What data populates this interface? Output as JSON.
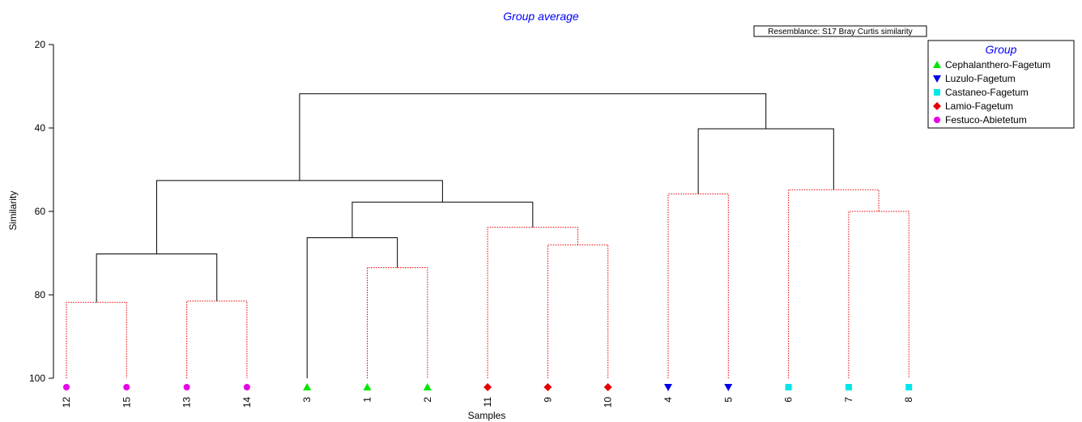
{
  "chart_data": {
    "type": "dendrogram",
    "title": "Group average",
    "annotation": "Resemblance: S17 Bray Curtis similarity",
    "xlabel": "Samples",
    "ylabel": "Similarity",
    "ylim": [
      20,
      100
    ],
    "yticks": [
      "20",
      "40",
      "60",
      "80",
      "100"
    ],
    "leaf_order": [
      "12",
      "15",
      "13",
      "14",
      "3",
      "1",
      "2",
      "11",
      "9",
      "10",
      "4",
      "5",
      "6",
      "7",
      "8"
    ],
    "leaf_groups": [
      "Festuco-Abietetum",
      "Festuco-Abietetum",
      "Festuco-Abietetum",
      "Festuco-Abietetum",
      "Cephalanthero-Fagetum",
      "Cephalanthero-Fagetum",
      "Cephalanthero-Fagetum",
      "Lamio-Fagetum",
      "Lamio-Fagetum",
      "Lamio-Fagetum",
      "Luzulo-Fagetum",
      "Luzulo-Fagetum",
      "Castaneo-Fagetum",
      "Castaneo-Fagetum",
      "Castaneo-Fagetum"
    ],
    "merges": [
      {
        "left": "12",
        "right": "15",
        "similarity": 81.8,
        "style": "dotted"
      },
      {
        "left": "13",
        "right": "14",
        "similarity": 81.5,
        "style": "dotted"
      },
      {
        "left": "1",
        "right": "2",
        "similarity": 73.5,
        "style": "dotted"
      },
      {
        "left": "9",
        "right": "10",
        "similarity": 68.0,
        "style": "dotted"
      },
      {
        "left": "11",
        "right": "9,10",
        "similarity": 63.8,
        "style": "dotted"
      },
      {
        "left": "4",
        "right": "5",
        "similarity": 55.8,
        "style": "dotted"
      },
      {
        "left": "7",
        "right": "8",
        "similarity": 60.0,
        "style": "dotted"
      },
      {
        "left": "6",
        "right": "7,8",
        "similarity": 54.8,
        "style": "dotted"
      },
      {
        "left": "12,15",
        "right": "13,14",
        "similarity": 70.2,
        "style": "solid"
      },
      {
        "left": "3",
        "right": "1,2",
        "similarity": 66.3,
        "style": "solid"
      },
      {
        "left": "3,1,2",
        "right": "11,9,10",
        "similarity": 57.8,
        "style": "solid"
      },
      {
        "left": "12,15,13,14",
        "right": "3,1,2,11,9,10",
        "similarity": 52.6,
        "style": "solid"
      },
      {
        "left": "4,5",
        "right": "6,7,8",
        "similarity": 40.2,
        "style": "solid"
      },
      {
        "left": "12,15,13,14,3,1,2,11,9,10",
        "right": "4,5,6,7,8",
        "similarity": 31.8,
        "style": "solid"
      }
    ],
    "legend": {
      "title": "Group",
      "placement": "top-right",
      "items": [
        {
          "name": "Cephalanthero-Fagetum",
          "color": "#00e600",
          "marker": "triangle-up"
        },
        {
          "name": "Luzulo-Fagetum",
          "color": "#0000e6",
          "marker": "triangle-down"
        },
        {
          "name": "Castaneo-Fagetum",
          "color": "#00e6e6",
          "marker": "square"
        },
        {
          "name": "Lamio-Fagetum",
          "color": "#e60000",
          "marker": "diamond"
        },
        {
          "name": "Festuco-Abietetum",
          "color": "#e600e6",
          "marker": "circle"
        }
      ]
    },
    "colors": {
      "title": "#0000ff",
      "solid_line": "#000000",
      "dotted_line": "#e60000"
    }
  }
}
